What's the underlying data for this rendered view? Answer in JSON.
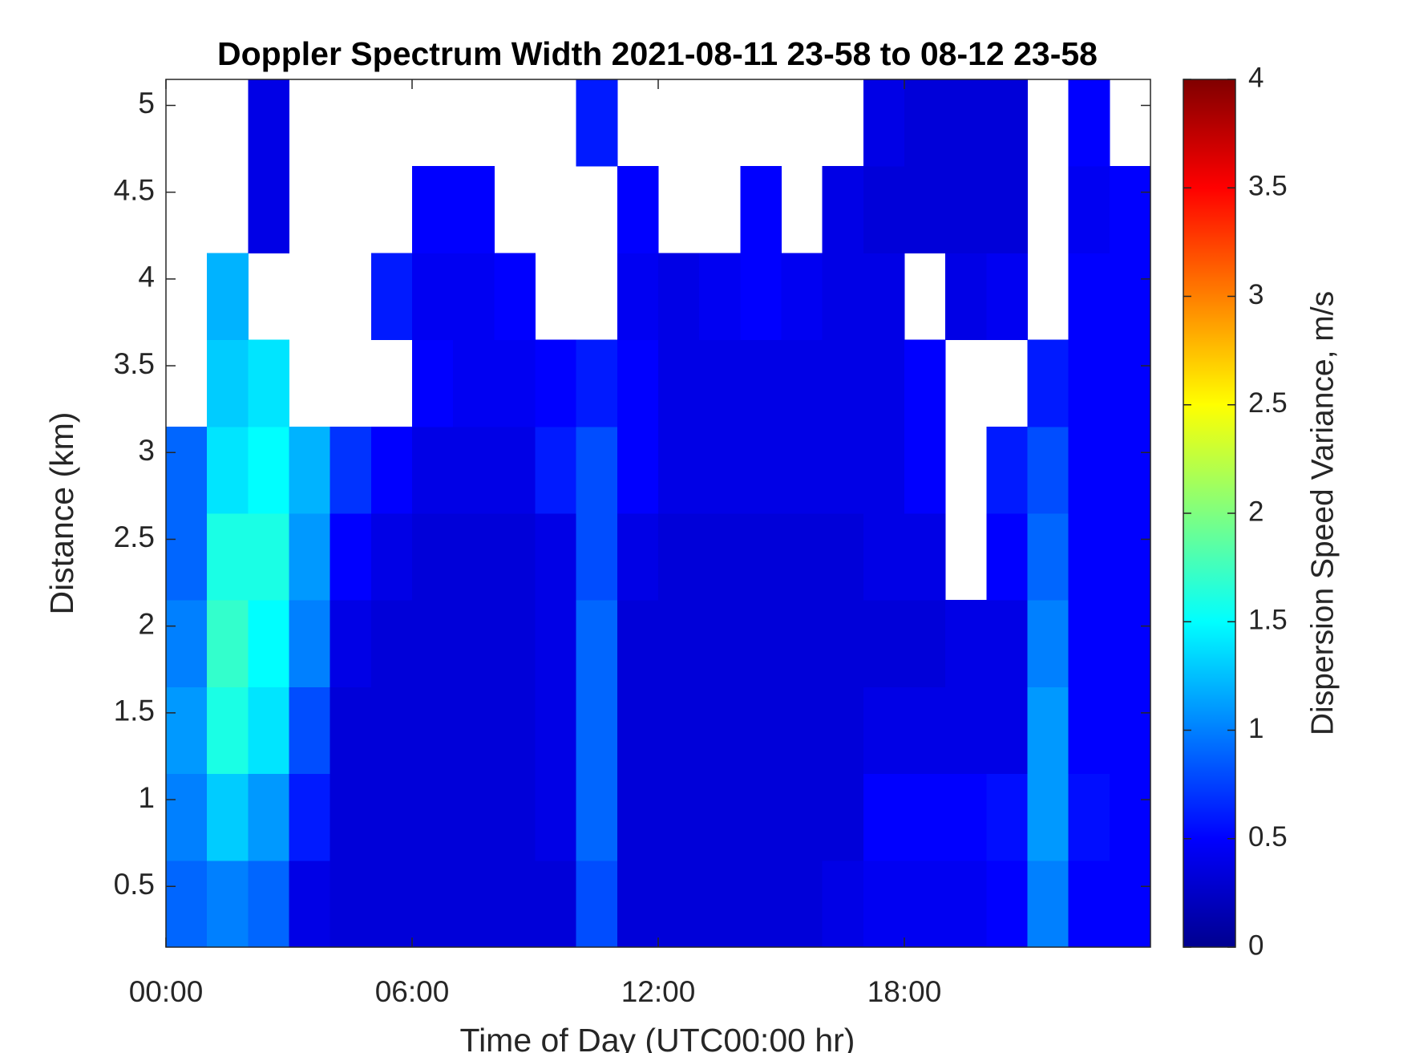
{
  "chart_data": {
    "type": "heatmap",
    "title": "Doppler Spectrum Width 2021-08-11 23-58 to 08-12 23-58",
    "xlabel": "Time of Day (UTC00:00 hr)",
    "ylabel": "Distance (km)",
    "colorbar_label": "Dispersion Speed Variance, m/s",
    "colormap": "jet",
    "x_bins": [
      0,
      1,
      2,
      3,
      4,
      5,
      6,
      7,
      8,
      9,
      10,
      11,
      12,
      13,
      14,
      15,
      16,
      17,
      18,
      19,
      20,
      21,
      22,
      23,
      24
    ],
    "y_bins": [
      0.15,
      0.65,
      1.15,
      1.65,
      2.15,
      2.65,
      3.15,
      3.65,
      4.15,
      4.65,
      5.15
    ],
    "values": [
      [
        0.9,
        1.0,
        0.9,
        0.4,
        0.35,
        0.35,
        0.35,
        0.35,
        0.35,
        0.35,
        0.8,
        0.35,
        0.35,
        0.35,
        0.35,
        0.35,
        0.4,
        0.45,
        0.45,
        0.45,
        0.5,
        1.0,
        0.5,
        0.5
      ],
      [
        1.0,
        1.3,
        1.1,
        0.6,
        0.35,
        0.35,
        0.35,
        0.35,
        0.35,
        0.4,
        0.9,
        0.35,
        0.35,
        0.35,
        0.35,
        0.35,
        0.35,
        0.5,
        0.5,
        0.5,
        0.55,
        1.1,
        0.55,
        0.5
      ],
      [
        1.1,
        1.6,
        1.4,
        0.8,
        0.35,
        0.35,
        0.35,
        0.35,
        0.35,
        0.4,
        0.9,
        0.35,
        0.35,
        0.35,
        0.35,
        0.35,
        0.35,
        0.4,
        0.4,
        0.4,
        0.4,
        1.1,
        0.5,
        0.5
      ],
      [
        1.0,
        1.7,
        1.5,
        1.0,
        0.4,
        0.35,
        0.35,
        0.35,
        0.35,
        0.4,
        0.9,
        0.35,
        0.35,
        0.35,
        0.35,
        0.35,
        0.35,
        0.35,
        0.35,
        0.4,
        0.4,
        1.0,
        0.5,
        0.5
      ],
      [
        0.9,
        1.6,
        1.6,
        1.1,
        0.5,
        0.4,
        0.35,
        0.35,
        0.35,
        0.4,
        0.8,
        0.4,
        0.35,
        0.35,
        0.35,
        0.35,
        0.35,
        0.4,
        0.4,
        null,
        0.5,
        0.9,
        0.5,
        0.5
      ],
      [
        0.9,
        1.4,
        1.5,
        1.2,
        0.7,
        0.5,
        0.4,
        0.4,
        0.4,
        0.6,
        0.8,
        0.5,
        0.4,
        0.4,
        0.4,
        0.4,
        0.4,
        0.4,
        0.5,
        null,
        0.6,
        0.8,
        0.5,
        0.5
      ],
      [
        null,
        1.3,
        1.4,
        null,
        null,
        null,
        0.5,
        0.45,
        0.45,
        0.5,
        0.6,
        0.5,
        0.4,
        0.4,
        0.4,
        0.4,
        0.4,
        0.4,
        0.5,
        null,
        null,
        0.6,
        0.5,
        0.5
      ],
      [
        null,
        1.2,
        null,
        null,
        null,
        0.6,
        0.45,
        0.45,
        0.5,
        null,
        null,
        0.45,
        0.4,
        0.45,
        0.5,
        0.45,
        0.4,
        0.4,
        null,
        0.4,
        0.45,
        null,
        0.5,
        0.5
      ],
      [
        null,
        null,
        0.4,
        null,
        null,
        null,
        0.5,
        0.5,
        null,
        null,
        null,
        0.5,
        null,
        null,
        0.5,
        null,
        0.4,
        0.35,
        0.35,
        0.35,
        0.35,
        null,
        0.45,
        0.5
      ],
      [
        null,
        null,
        0.4,
        null,
        null,
        null,
        null,
        null,
        null,
        null,
        0.6,
        null,
        null,
        null,
        null,
        null,
        null,
        0.4,
        0.35,
        0.35,
        0.35,
        null,
        0.5,
        null
      ]
    ],
    "xlim": [
      0,
      24
    ],
    "xticks": [
      {
        "value": 0,
        "label": "00:00"
      },
      {
        "value": 6,
        "label": "06:00"
      },
      {
        "value": 12,
        "label": "12:00"
      },
      {
        "value": 18,
        "label": "18:00"
      }
    ],
    "ylim": [
      0.15,
      5.15
    ],
    "yticks": [
      0.5,
      1,
      1.5,
      2,
      2.5,
      3,
      3.5,
      4,
      4.5,
      5
    ],
    "clim": [
      0,
      4
    ],
    "cticks": [
      0,
      0.5,
      1,
      1.5,
      2,
      2.5,
      3,
      3.5,
      4
    ]
  }
}
